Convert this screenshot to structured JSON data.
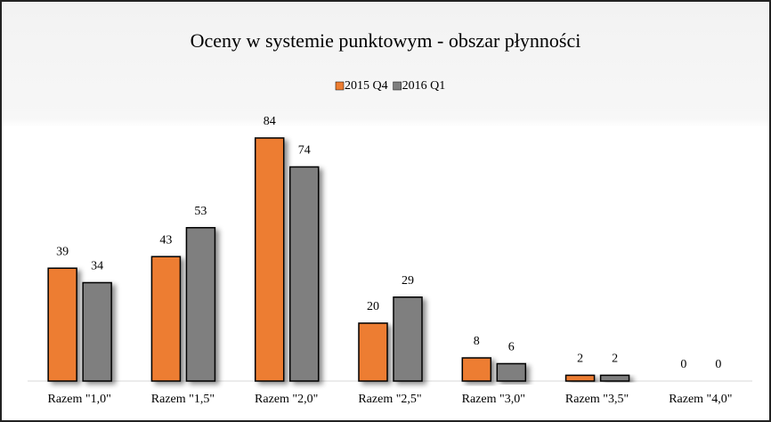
{
  "chart_data": {
    "type": "bar",
    "title": "Oceny w systemie punktowym - obszar płynności",
    "categories": [
      "Razem \"1,0\"",
      "Razem \"1,5\"",
      "Razem \"2,0\"",
      "Razem \"2,5\"",
      "Razem \"3,0\"",
      "Razem \"3,5\"",
      "Razem \"4,0\""
    ],
    "series": [
      {
        "name": "2015 Q4",
        "color": "#ed7d31",
        "values": [
          39,
          43,
          84,
          20,
          8,
          2,
          0
        ]
      },
      {
        "name": "2016 Q1",
        "color": "#7f7f7f",
        "values": [
          34,
          53,
          74,
          29,
          6,
          2,
          0
        ]
      }
    ],
    "legend": "top"
  }
}
